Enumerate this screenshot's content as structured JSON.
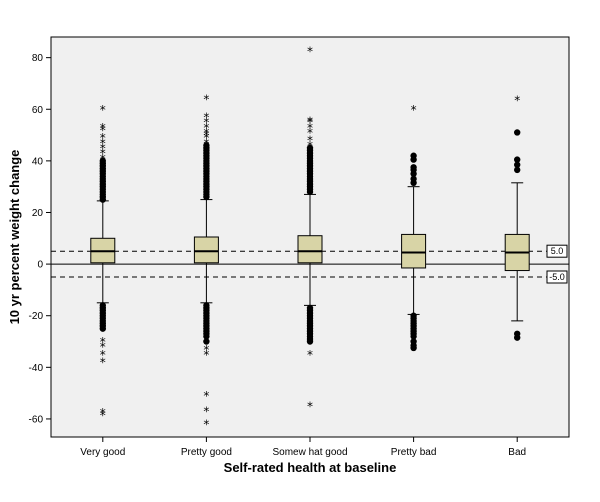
{
  "chart_data": {
    "type": "boxplot",
    "title": "",
    "xlabel": "Self-rated health at baseline",
    "ylabel": "10 yr percent weight change",
    "ylim": [
      -67,
      88
    ],
    "yticks": [
      -60,
      -40,
      -20,
      0,
      20,
      40,
      60,
      80
    ],
    "grid": false,
    "colors": {
      "plot_bg": "#f0f0f0",
      "box_fill": "#d8d4a6",
      "outline": "#000000"
    },
    "categories": [
      "Very good",
      "Pretty good",
      "Somew hat good",
      "Pretty bad",
      "Bad"
    ],
    "boxes": [
      {
        "q1": 0.5,
        "median": 5,
        "q3": 10,
        "whisker_low": -15,
        "whisker_high": 24.5
      },
      {
        "q1": 0.5,
        "median": 5,
        "q3": 10.5,
        "whisker_low": -15,
        "whisker_high": 25
      },
      {
        "q1": 0.5,
        "median": 5,
        "q3": 11,
        "whisker_low": -16,
        "whisker_high": 27
      },
      {
        "q1": -1.5,
        "median": 4.5,
        "q3": 11.5,
        "whisker_low": -19.5,
        "whisker_high": 30
      },
      {
        "q1": -2.5,
        "median": 4.5,
        "q3": 11.5,
        "whisker_low": -22,
        "whisker_high": 31.5
      }
    ],
    "outliers": [
      [
        25,
        26,
        27,
        28,
        29,
        30,
        31,
        32,
        33,
        34,
        35,
        36,
        37,
        38,
        39,
        40,
        -16,
        -17,
        -18,
        -19,
        -20,
        -21,
        -22,
        -23,
        -24,
        -25
      ],
      [
        26,
        27,
        28,
        29,
        30,
        31,
        32,
        33,
        34,
        35,
        36,
        37,
        38,
        39,
        40,
        41,
        42,
        43,
        44,
        45,
        46,
        -16,
        -17,
        -18,
        -19,
        -20,
        -21,
        -22,
        -23,
        -24,
        -25,
        -26,
        -27,
        -28,
        -30
      ],
      [
        28,
        29,
        30,
        31,
        32,
        33,
        34,
        35,
        36,
        37,
        38,
        39,
        40,
        41,
        42,
        43,
        44,
        45,
        -17,
        -18,
        -19,
        -20,
        -21,
        -22,
        -23,
        -24,
        -25,
        -26,
        -27,
        -28,
        -29,
        -30
      ],
      [
        31.5,
        33,
        35,
        36.5,
        37.5,
        40.5,
        42,
        -20,
        -21,
        -22,
        -23,
        -24,
        -25,
        -26,
        -27,
        -28,
        -30,
        -31.5,
        -32.5
      ],
      [
        36.5,
        38.5,
        40.5,
        51,
        -27,
        -28.5
      ]
    ],
    "extremes": [
      [
        38,
        41,
        43,
        45,
        47,
        49,
        52,
        53,
        60,
        -30,
        -32,
        -35,
        -38,
        -57.5,
        -58.5
      ],
      [
        41,
        43,
        45,
        47,
        49,
        50,
        51,
        53,
        55,
        57,
        64,
        -33,
        -35,
        -51,
        -57,
        -62
      ],
      [
        44,
        46,
        48,
        51,
        53,
        55,
        55.5,
        82.5,
        -35,
        -55
      ],
      [
        60
      ],
      [
        63.5
      ]
    ],
    "reference_lines": [
      {
        "value": 5.0,
        "label": "5.0"
      },
      {
        "value": -5.0,
        "label": "-5.0"
      }
    ]
  }
}
